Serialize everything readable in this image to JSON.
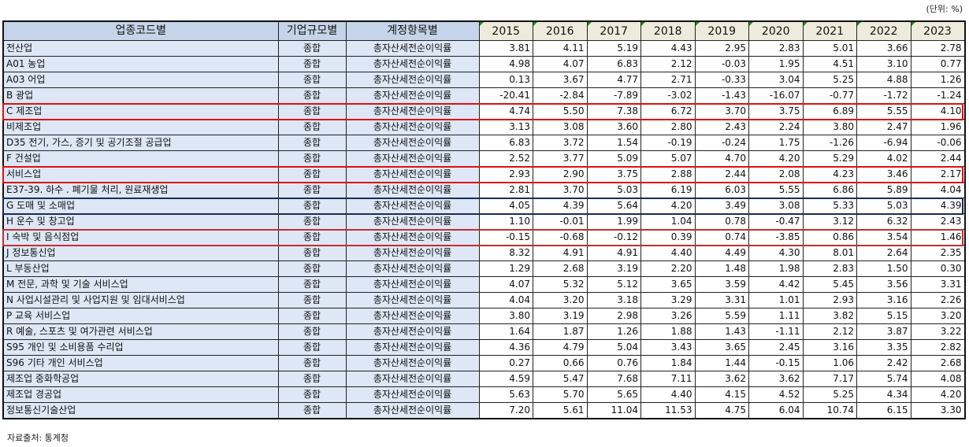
{
  "unit_label": "(단위: %)",
  "table": {
    "headers": {
      "industry": "업종코드별",
      "size": "기업규모별",
      "item": "계정항목별",
      "years": [
        "2015",
        "2016",
        "2017",
        "2018",
        "2019",
        "2020",
        "2021",
        "2022",
        "2023"
      ]
    },
    "rows": [
      {
        "industry": "전산업",
        "size": "종합",
        "item": "총자산세전순이익률",
        "values": [
          "3.81",
          "4.11",
          "5.19",
          "4.43",
          "2.95",
          "2.83",
          "5.01",
          "3.66",
          "2.78"
        ]
      },
      {
        "industry": "A01 농업",
        "size": "종합",
        "item": "총자산세전순이익률",
        "values": [
          "4.98",
          "4.07",
          "6.83",
          "2.12",
          "-0.03",
          "1.95",
          "4.51",
          "3.10",
          "0.77"
        ]
      },
      {
        "industry": "A03 어업",
        "size": "종합",
        "item": "총자산세전순이익률",
        "values": [
          "0.13",
          "3.67",
          "4.77",
          "2.71",
          "-0.33",
          "3.04",
          "5.25",
          "4.88",
          "1.26"
        ]
      },
      {
        "industry": "B 광업",
        "size": "종합",
        "item": "총자산세전순이익률",
        "values": [
          "-20.41",
          "-2.84",
          "-7.89",
          "-3.02",
          "-1.43",
          "-16.07",
          "-0.77",
          "-1.72",
          "-1.24"
        ]
      },
      {
        "industry": "C 제조업",
        "size": "종합",
        "item": "총자산세전순이익률",
        "values": [
          "4.74",
          "5.50",
          "7.38",
          "6.72",
          "3.70",
          "3.75",
          "6.89",
          "5.55",
          "4.10"
        ]
      },
      {
        "industry": "비제조업",
        "size": "종합",
        "item": "총자산세전순이익률",
        "values": [
          "3.13",
          "3.08",
          "3.60",
          "2.80",
          "2.43",
          "2.24",
          "3.80",
          "2.47",
          "1.96"
        ]
      },
      {
        "industry": "D35 전기, 가스, 증기 및 공기조절 공급업",
        "size": "종합",
        "item": "총자산세전순이익률",
        "values": [
          "6.83",
          "3.72",
          "1.54",
          "-0.19",
          "-0.24",
          "1.75",
          "-1.26",
          "-6.94",
          "-0.06"
        ]
      },
      {
        "industry": "F 건설업",
        "size": "종합",
        "item": "총자산세전순이익률",
        "values": [
          "2.52",
          "3.77",
          "5.09",
          "5.07",
          "4.70",
          "4.20",
          "5.29",
          "4.02",
          "2.44"
        ]
      },
      {
        "industry": "서비스업",
        "size": "종합",
        "item": "총자산세전순이익률",
        "values": [
          "2.93",
          "2.90",
          "3.75",
          "2.88",
          "2.44",
          "2.08",
          "4.23",
          "3.46",
          "2.17"
        ]
      },
      {
        "industry": "E37-39. 하수 . 폐기물 처리, 원료재생업",
        "size": "종합",
        "item": "총자산세전순이익률",
        "values": [
          "2.81",
          "3.70",
          "5.03",
          "6.19",
          "6.03",
          "5.55",
          "6.86",
          "5.89",
          "4.04"
        ]
      },
      {
        "industry": "G 도매 및 소매업",
        "size": "종합",
        "item": "총자산세전순이익률",
        "values": [
          "4.05",
          "4.39",
          "5.64",
          "4.20",
          "3.49",
          "3.08",
          "5.33",
          "5.03",
          "4.39"
        ]
      },
      {
        "industry": "H 운수 및 창고업",
        "size": "종합",
        "item": "총자산세전순이익률",
        "values": [
          "1.10",
          "-0.01",
          "1.99",
          "1.04",
          "0.78",
          "-0.47",
          "3.12",
          "6.32",
          "2.43"
        ]
      },
      {
        "industry": "I 숙박 및 음식점업",
        "size": "종합",
        "item": "총자산세전순이익률",
        "values": [
          "-0.15",
          "-0.68",
          "-0.12",
          "0.39",
          "0.74",
          "-3.85",
          "0.86",
          "3.54",
          "1.46"
        ]
      },
      {
        "industry": "J 정보통신업",
        "size": "종합",
        "item": "총자산세전순이익률",
        "values": [
          "8.32",
          "4.91",
          "4.91",
          "4.40",
          "4.49",
          "4.30",
          "8.01",
          "2.64",
          "2.35"
        ]
      },
      {
        "industry": "L 부동산업",
        "size": "종합",
        "item": "총자산세전순이익률",
        "values": [
          "1.29",
          "2.68",
          "3.19",
          "2.20",
          "1.48",
          "1.98",
          "2.83",
          "1.50",
          "0.30"
        ]
      },
      {
        "industry": "M 전문, 과학 및 기술 서비스업",
        "size": "종합",
        "item": "총자산세전순이익률",
        "values": [
          "4.07",
          "5.32",
          "5.12",
          "3.65",
          "3.59",
          "4.42",
          "5.45",
          "3.56",
          "3.31"
        ]
      },
      {
        "industry": "N 사업시설관리 및 사업지원 및 임대서비스업",
        "size": "종합",
        "item": "총자산세전순이익률",
        "values": [
          "4.04",
          "3.20",
          "3.18",
          "3.29",
          "3.31",
          "1.01",
          "2.93",
          "3.16",
          "2.26"
        ]
      },
      {
        "industry": "P 교육 서비스업",
        "size": "종합",
        "item": "총자산세전순이익률",
        "values": [
          "3.80",
          "3.19",
          "2.98",
          "3.26",
          "5.59",
          "1.11",
          "3.82",
          "5.15",
          "3.20"
        ]
      },
      {
        "industry": "R 예술, 스포츠 및 여가관련 서비스업",
        "size": "종합",
        "item": "총자산세전순이익률",
        "values": [
          "1.64",
          "1.87",
          "1.26",
          "1.88",
          "1.43",
          "-1.11",
          "2.12",
          "3.87",
          "3.22"
        ]
      },
      {
        "industry": "S95 개인 및 소비용품 수리업",
        "size": "종합",
        "item": "총자산세전순이익률",
        "values": [
          "4.36",
          "4.79",
          "5.04",
          "3.43",
          "3.65",
          "2.45",
          "3.16",
          "3.35",
          "2.82"
        ]
      },
      {
        "industry": "S96 기타 개인 서비스업",
        "size": "종합",
        "item": "총자산세전순이익률",
        "values": [
          "0.27",
          "0.66",
          "0.76",
          "1.84",
          "1.44",
          "-0.15",
          "1.06",
          "2.42",
          "2.68"
        ]
      },
      {
        "industry": "제조업 중화학공업",
        "size": "종합",
        "item": "총자산세전순이익률",
        "values": [
          "4.59",
          "5.47",
          "7.68",
          "7.11",
          "3.62",
          "3.62",
          "7.17",
          "5.74",
          "4.08"
        ]
      },
      {
        "industry": "제조업 경공업",
        "size": "종합",
        "item": "총자산세전순이익률",
        "values": [
          "5.63",
          "5.70",
          "5.65",
          "4.40",
          "4.15",
          "4.52",
          "5.25",
          "4.34",
          "4.20"
        ]
      },
      {
        "industry": "정보통신기술산업",
        "size": "종합",
        "item": "총자산세전순이익률",
        "values": [
          "7.20",
          "5.61",
          "11.04",
          "11.53",
          "4.75",
          "6.04",
          "10.74",
          "6.15",
          "3.30"
        ]
      }
    ],
    "highlights": [
      {
        "row": 4,
        "color": "#e01010"
      },
      {
        "row": 8,
        "color": "#e01010"
      },
      {
        "row": 10,
        "color": "#1a2a5a"
      },
      {
        "row": 12,
        "color": "#c03030"
      }
    ]
  },
  "source_note": "자료출처: 통계청"
}
